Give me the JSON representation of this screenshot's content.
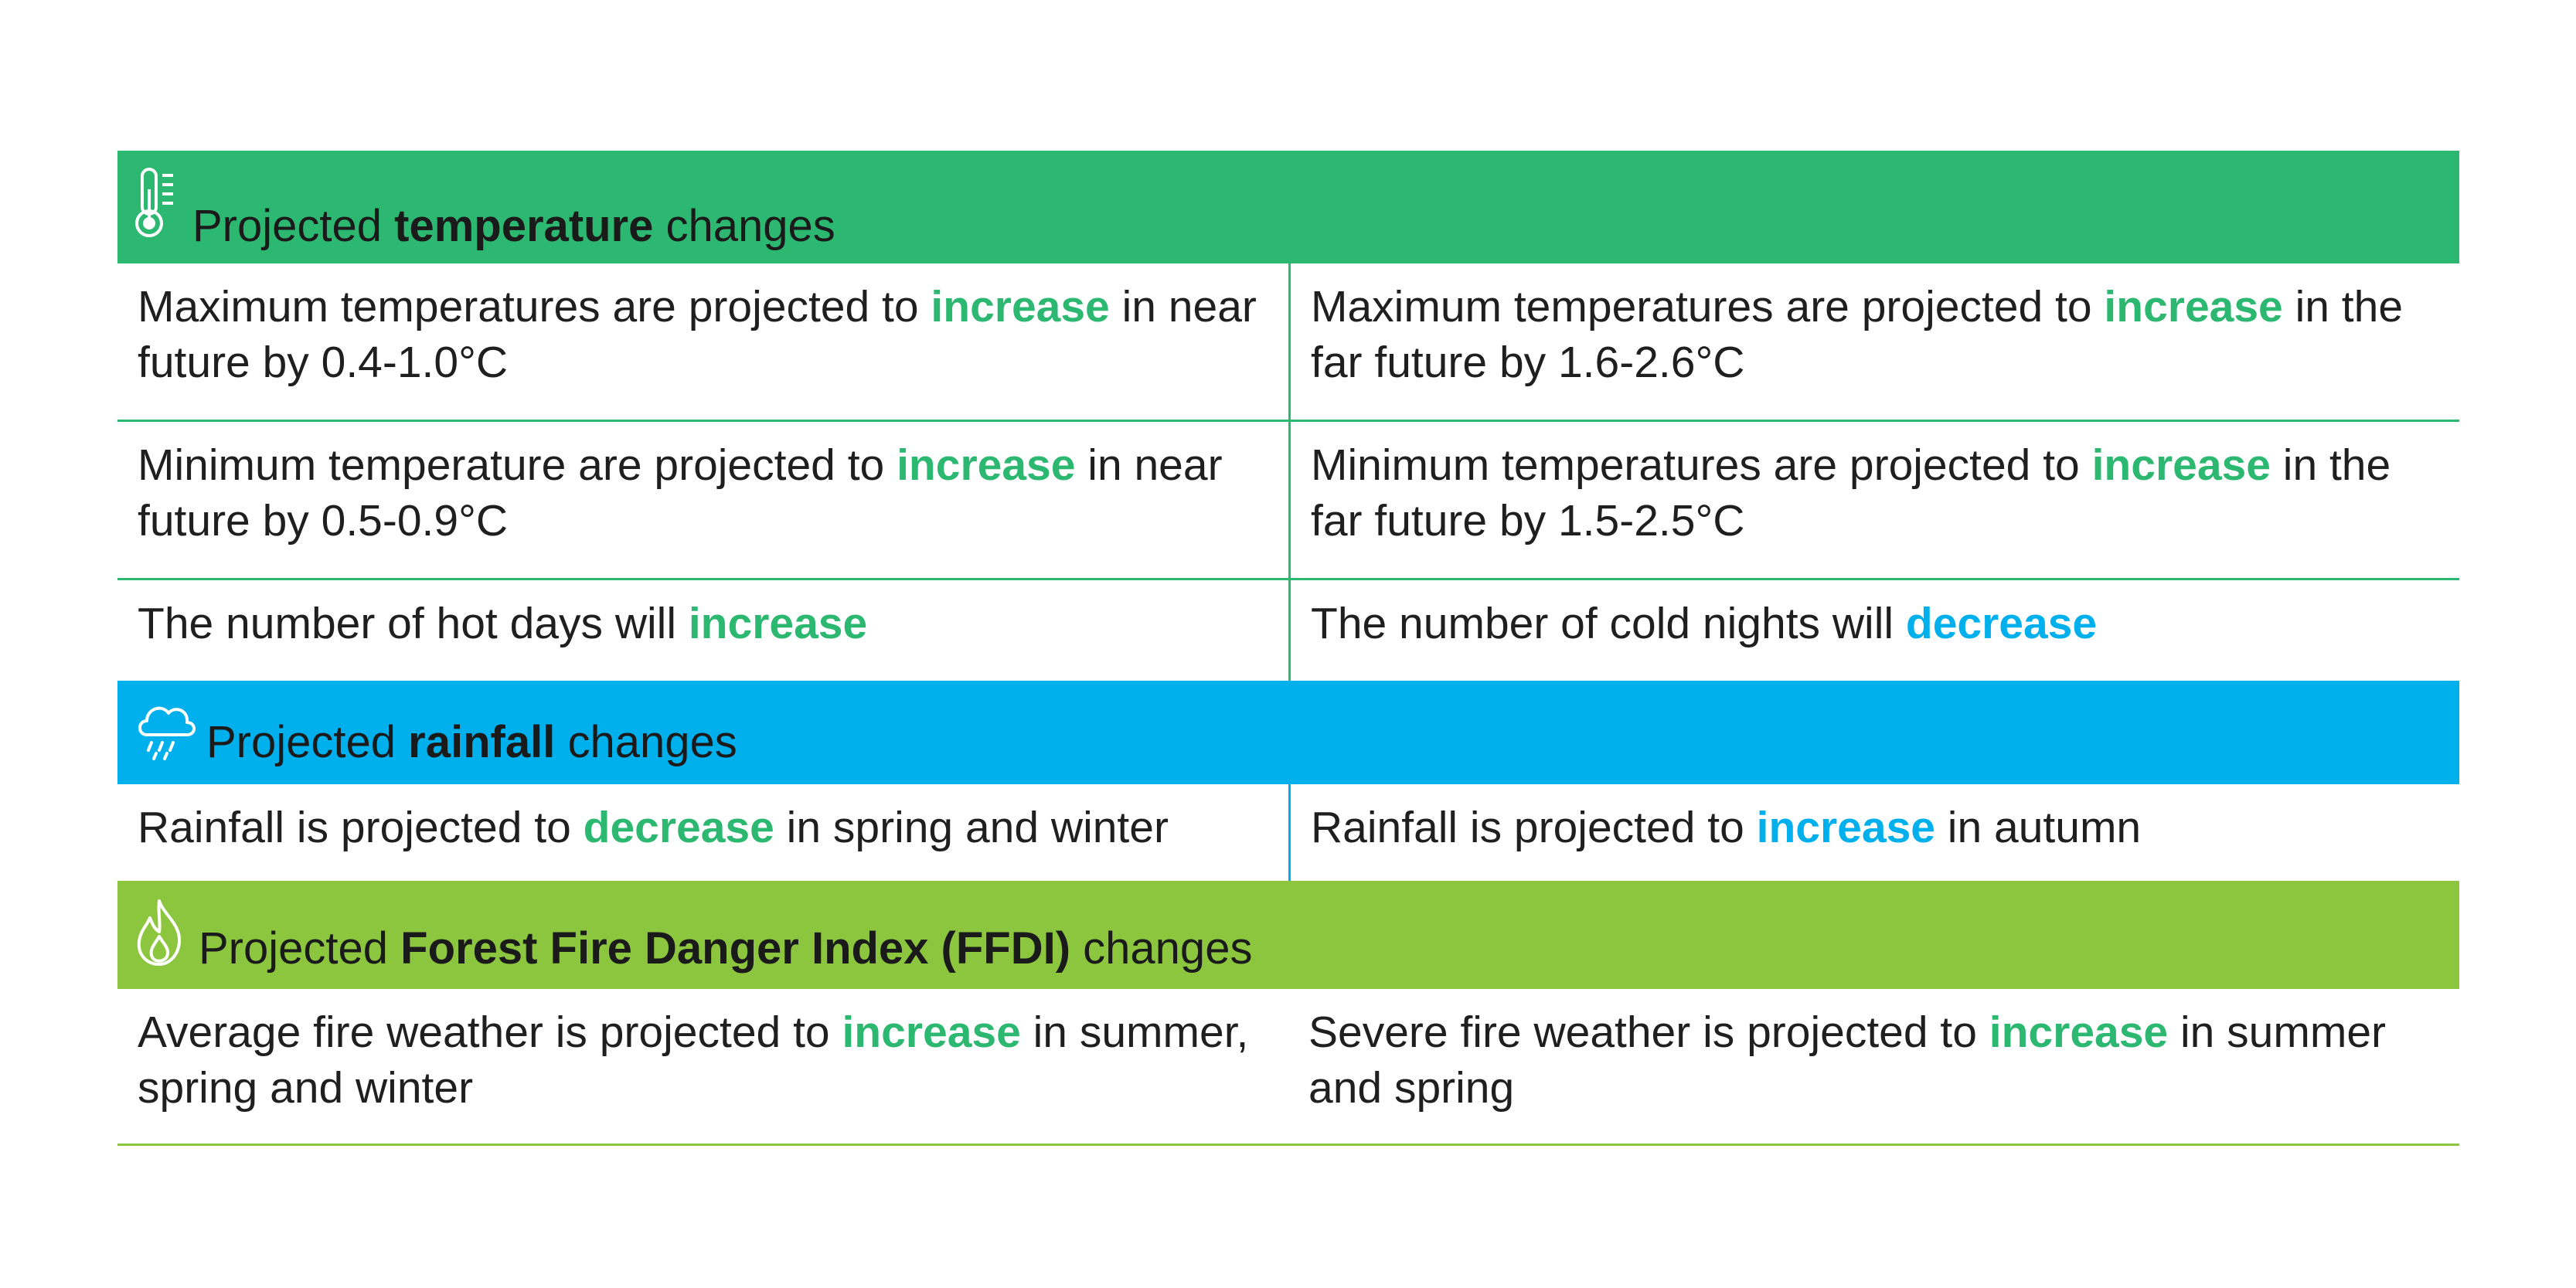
{
  "colors": {
    "temperature": "#2db872",
    "rainfall": "#00b0ec",
    "fire": "#8cc63f",
    "keyword_green": "#2db872",
    "keyword_blue": "#00b0ec"
  },
  "sections": {
    "temperature": {
      "icon": "thermometer-icon",
      "title_pre": "Projected ",
      "title_bold": "temperature",
      "title_post": " changes",
      "rows": [
        [
          {
            "pre": "Maximum temperatures are projected to ",
            "kw": "increase",
            "post": " in near future by 0.4-1.0°C"
          },
          {
            "pre": "Maximum temperatures are projected to ",
            "kw": "increase",
            "post": " in the far future by 1.6-2.6°C"
          }
        ],
        [
          {
            "pre": "Minimum temperature are projected to ",
            "kw": "increase",
            "post": " in near future by 0.5-0.9°C"
          },
          {
            "pre": "Minimum temperatures are projected to ",
            "kw": "increase",
            "post": " in the far future by 1.5-2.5°C"
          }
        ],
        [
          {
            "pre": "The number of hot days will ",
            "kw": "increase",
            "post": ""
          },
          {
            "pre": "The number of cold nights will ",
            "kw": "decrease",
            "post": ""
          }
        ]
      ]
    },
    "rainfall": {
      "icon": "rain-cloud-icon",
      "title_pre": "Projected ",
      "title_bold": "rainfall",
      "title_post": " changes",
      "rows": [
        [
          {
            "pre": "Rainfall is projected to ",
            "kw": "decrease",
            "post": " in spring and winter"
          },
          {
            "pre": "Rainfall is projected to ",
            "kw": "increase",
            "post": " in autumn"
          }
        ]
      ]
    },
    "fire": {
      "icon": "flame-icon",
      "title_pre": "Projected ",
      "title_bold": "Forest Fire Danger Index (FFDI)",
      "title_post": " changes",
      "rows": [
        [
          {
            "pre": "Average fire weather is projected to ",
            "kw": "increase",
            "post": " in summer, spring and winter"
          },
          {
            "pre": "Severe fire weather is projected to ",
            "kw": "increase",
            "post": " in summer and spring"
          }
        ]
      ]
    }
  }
}
